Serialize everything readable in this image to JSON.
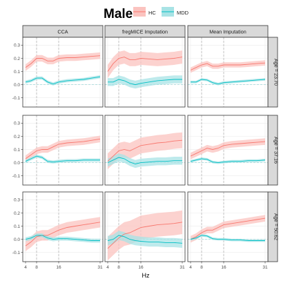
{
  "title": "Male",
  "legend": [
    {
      "name": "HC",
      "color": "#F8766D",
      "fill": "#FBC3BF"
    },
    {
      "name": "MDD",
      "color": "#00BFC4",
      "fill": "#A8E3E5"
    }
  ],
  "xlabel": "Hz",
  "columns": [
    "CCA",
    "fregMICE Imputation",
    "Mean Imputation"
  ],
  "rows": [
    "Age = 23.70",
    "Age = 37.16",
    "Age = 50.62"
  ],
  "chart_data": {
    "type": "line",
    "title": "Male",
    "xlabel": "Hz",
    "ylabel": "",
    "x": [
      4,
      6,
      8,
      10,
      12,
      14,
      16,
      19,
      22,
      25,
      28,
      31
    ],
    "xlim": [
      3,
      32
    ],
    "ylim": [
      -0.17,
      0.36
    ],
    "x_ticks": [
      4,
      8,
      16,
      31
    ],
    "y_ticks": [
      -0.1,
      0.0,
      0.1,
      0.2,
      0.3
    ],
    "y_tick_labels": [
      "-0.1",
      "0.0",
      "0.1",
      "0.2",
      "0.3"
    ],
    "vlines": [
      8,
      16
    ],
    "hline": 0,
    "grid": true,
    "legend_position": "top",
    "panels": [
      {
        "row": "Age = 23.70",
        "col": "CCA",
        "series": [
          {
            "name": "HC",
            "values": [
              0.13,
              0.16,
              0.2,
              0.2,
              0.18,
              0.18,
              0.2,
              0.205,
              0.205,
              0.21,
              0.215,
              0.22
            ],
            "band": 0.025
          },
          {
            "name": "MDD",
            "values": [
              0.02,
              0.03,
              0.05,
              0.05,
              0.02,
              0.005,
              0.02,
              0.03,
              0.035,
              0.04,
              0.05,
              0.06
            ],
            "band": 0.012
          }
        ]
      },
      {
        "row": "Age = 23.70",
        "col": "fregMICE Imputation",
        "series": [
          {
            "name": "HC",
            "values": [
              0.1,
              0.16,
              0.2,
              0.21,
              0.19,
              0.19,
              0.2,
              0.195,
              0.19,
              0.195,
              0.2,
              0.21
            ],
            "band": 0.05
          },
          {
            "name": "MDD",
            "values": [
              0.02,
              0.02,
              0.04,
              0.03,
              0.01,
              0.0,
              0.01,
              0.02,
              0.03,
              0.035,
              0.04,
              0.04
            ],
            "band": 0.03
          }
        ]
      },
      {
        "row": "Age = 23.70",
        "col": "Mean Imputation",
        "series": [
          {
            "name": "HC",
            "values": [
              0.11,
              0.13,
              0.15,
              0.16,
              0.14,
              0.14,
              0.15,
              0.15,
              0.15,
              0.155,
              0.16,
              0.165
            ],
            "band": 0.02
          },
          {
            "name": "MDD",
            "values": [
              0.02,
              0.02,
              0.04,
              0.035,
              0.015,
              0.005,
              0.015,
              0.02,
              0.025,
              0.03,
              0.035,
              0.04
            ],
            "band": 0.01
          }
        ]
      },
      {
        "row": "Age = 37.16",
        "col": "CCA",
        "series": [
          {
            "name": "HC",
            "values": [
              0.03,
              0.06,
              0.09,
              0.1,
              0.1,
              0.12,
              0.14,
              0.15,
              0.155,
              0.16,
              0.17,
              0.18
            ],
            "band": 0.025
          },
          {
            "name": "MDD",
            "values": [
              0.01,
              0.03,
              0.05,
              0.04,
              0.01,
              0.005,
              0.01,
              0.015,
              0.015,
              0.02,
              0.02,
              0.02
            ],
            "band": 0.012
          }
        ]
      },
      {
        "row": "Age = 37.16",
        "col": "fregMICE Imputation",
        "series": [
          {
            "name": "HC",
            "values": [
              0.01,
              0.05,
              0.09,
              0.1,
              0.09,
              0.11,
              0.13,
              0.14,
              0.15,
              0.155,
              0.165,
              0.17
            ],
            "band": 0.06
          },
          {
            "name": "MDD",
            "values": [
              0.0,
              0.02,
              0.04,
              0.03,
              0.005,
              -0.01,
              0.0,
              0.005,
              0.01,
              0.01,
              0.015,
              0.015
            ],
            "band": 0.03
          }
        ]
      },
      {
        "row": "Age = 37.16",
        "col": "Mean Imputation",
        "series": [
          {
            "name": "HC",
            "values": [
              0.05,
              0.07,
              0.09,
              0.11,
              0.1,
              0.11,
              0.13,
              0.14,
              0.145,
              0.15,
              0.155,
              0.16
            ],
            "band": 0.025
          },
          {
            "name": "MDD",
            "values": [
              0.01,
              0.02,
              0.03,
              0.025,
              0.005,
              0.0,
              0.005,
              0.01,
              0.01,
              0.015,
              0.015,
              0.02
            ],
            "band": 0.01
          }
        ]
      },
      {
        "row": "Age = 50.62",
        "col": "CCA",
        "series": [
          {
            "name": "HC",
            "values": [
              -0.05,
              -0.02,
              0.02,
              0.03,
              0.03,
              0.05,
              0.07,
              0.09,
              0.1,
              0.11,
              0.12,
              0.13
            ],
            "band": 0.04
          },
          {
            "name": "MDD",
            "values": [
              0.0,
              0.01,
              0.03,
              0.03,
              0.01,
              0.0,
              0.005,
              0.005,
              0.0,
              -0.005,
              -0.01,
              -0.01
            ],
            "band": 0.015
          }
        ]
      },
      {
        "row": "Age = 50.62",
        "col": "fregMICE Imputation",
        "series": [
          {
            "name": "HC",
            "values": [
              -0.07,
              -0.03,
              0.01,
              0.04,
              0.05,
              0.07,
              0.09,
              0.1,
              0.11,
              0.115,
              0.12,
              0.13
            ],
            "band": 0.09
          },
          {
            "name": "MDD",
            "values": [
              -0.01,
              0.0,
              0.03,
              0.02,
              0.0,
              -0.01,
              -0.015,
              -0.02,
              -0.02,
              -0.025,
              -0.025,
              -0.03
            ],
            "band": 0.035
          }
        ]
      },
      {
        "row": "Age = 50.62",
        "col": "Mean Imputation",
        "series": [
          {
            "name": "HC",
            "values": [
              0.0,
              0.02,
              0.05,
              0.07,
              0.07,
              0.09,
              0.11,
              0.12,
              0.13,
              0.14,
              0.15,
              0.16
            ],
            "band": 0.025
          },
          {
            "name": "MDD",
            "values": [
              0.0,
              0.01,
              0.03,
              0.025,
              0.005,
              0.0,
              0.0,
              -0.005,
              -0.005,
              -0.01,
              -0.01,
              -0.01
            ],
            "band": 0.01
          }
        ]
      }
    ]
  }
}
